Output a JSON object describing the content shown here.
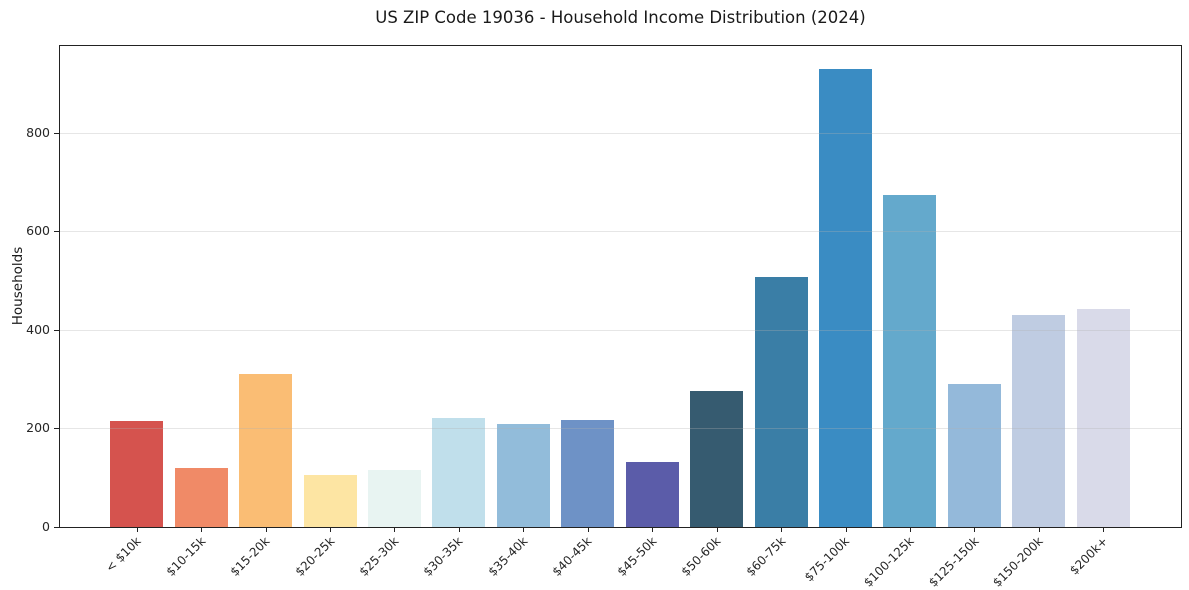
{
  "chart_data": {
    "type": "bar",
    "title": "US ZIP Code 19036 - Household Income Distribution (2024)",
    "xlabel": "",
    "ylabel": "Households",
    "categories": [
      "< $10k",
      "$10-15k",
      "$15-20k",
      "$20-25k",
      "$25-30k",
      "$30-35k",
      "$35-40k",
      "$40-45k",
      "$45-50k",
      "$50-60k",
      "$60-75k",
      "$75-100k",
      "$100-125k",
      "$125-150k",
      "$150-200k",
      "$200k+"
    ],
    "values": [
      215,
      120,
      310,
      106,
      115,
      222,
      209,
      217,
      132,
      276,
      507,
      930,
      674,
      290,
      431,
      443
    ],
    "bar_colors": [
      "#d5534e",
      "#f08a67",
      "#fabd74",
      "#fde5a3",
      "#e8f4f2",
      "#c0dfeb",
      "#92bcda",
      "#6e92c6",
      "#5b5ca9",
      "#365b70",
      "#3a7ea6",
      "#3a8cc3",
      "#64a9cc",
      "#94b9da",
      "#bfcce2",
      "#d9dae9"
    ],
    "yticks": [
      0,
      200,
      400,
      600,
      800
    ],
    "ylim": [
      0,
      976
    ],
    "x_tick_rotation": 45,
    "grid": "horizontal",
    "grid_on_top_of_bars": true,
    "legend": "none",
    "background": "#ffffff",
    "spine_color": "#222222",
    "text_color": "#262626"
  }
}
